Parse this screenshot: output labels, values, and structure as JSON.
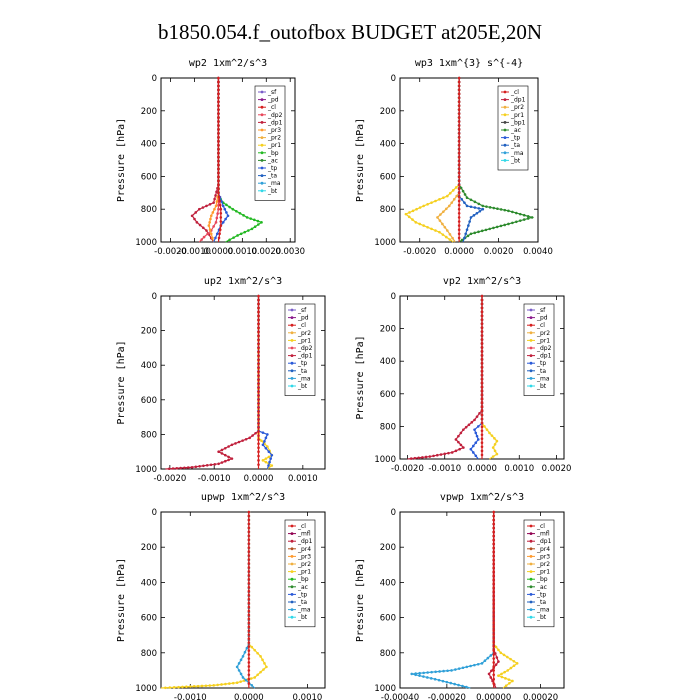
{
  "figure_title": "b1850.054.f_outofbox  BUDGET at205E,20N",
  "ylabel": "Pressure [hPa]",
  "y_ticks": [
    "0",
    "200",
    "400",
    "600",
    "800",
    "1000"
  ],
  "colors": {
    "_sf": "#7a5cc8",
    "_pd": "#8b1a8b",
    "_cl": "#d62020",
    "_dp2": "#e8475a",
    "_dp1": "#c0203c",
    "_pr3": "#ff9a2e",
    "_pr2": "#f0b040",
    "_pr1": "#f5d020",
    "_bp": "#22b822",
    "_ac": "#2e8b2e",
    "_tp": "#2a5ad8",
    "_ta": "#2060c0",
    "_ma": "#30a0d8",
    "_bt": "#30d8e8",
    "_mfl": "#900050",
    "_pr4": "#b05020"
  },
  "chart_data": [
    {
      "type": "line",
      "title": "wp2  1xm^2/s^3",
      "x_ticks": [
        "-0.0020",
        "-0.0010",
        "0.0000",
        "0.0010",
        "0.0020",
        "0.0030"
      ],
      "xlim": [
        -0.0024,
        0.0032
      ],
      "ylim": [
        1000,
        0
      ],
      "legend": [
        "_sf",
        "_pd",
        "_cl",
        "_dp2",
        "_dp1",
        "_pr3",
        "_pr2",
        "_pr1",
        "_bp",
        "_ac",
        "_tp",
        "_ta",
        "_ma",
        "_bt"
      ],
      "legend_position": "top-right",
      "series": [
        {
          "name": "_bp",
          "x": [
            0,
            0,
            0,
            0.0002,
            0.0006,
            0.0012,
            0.0018,
            0.0014,
            0.0008,
            0.0003
          ],
          "y": [
            0,
            600,
            720,
            760,
            800,
            850,
            880,
            920,
            960,
            1000
          ]
        },
        {
          "name": "_dp1",
          "x": [
            0,
            0,
            -0.0002,
            -0.0008,
            -0.0011,
            -0.0009,
            -0.0005,
            -0.0002
          ],
          "y": [
            0,
            650,
            760,
            800,
            840,
            880,
            930,
            1000
          ]
        },
        {
          "name": "_dp2",
          "x": [
            0,
            0,
            -0.0001,
            -0.0003,
            -0.0006,
            -0.0008
          ],
          "y": [
            0,
            800,
            880,
            930,
            970,
            1000
          ]
        },
        {
          "name": "_pr3",
          "x": [
            0,
            0,
            -0.0001,
            -0.0003,
            -0.0004,
            -0.0002
          ],
          "y": [
            0,
            700,
            780,
            840,
            900,
            1000
          ]
        },
        {
          "name": "_tp",
          "x": [
            0,
            0,
            0.0002,
            0.0004,
            0.0001,
            -0.0002
          ],
          "y": [
            0,
            700,
            780,
            840,
            900,
            1000
          ]
        },
        {
          "name": "_cl",
          "x": [
            0,
            0,
            0.0001,
            0.0001,
            0
          ],
          "y": [
            0,
            700,
            800,
            900,
            1000
          ]
        }
      ]
    },
    {
      "type": "line",
      "title": "wp3  1xm^{3} s^{-4}",
      "x_ticks": [
        "-0.0020",
        "0.0000",
        "0.0020",
        "0.0040"
      ],
      "xlim": [
        -0.003,
        0.004
      ],
      "ylim": [
        1000,
        0
      ],
      "legend": [
        "_cl",
        "_dp1",
        "_pr2",
        "_pr1",
        "_bp1",
        "_ac",
        "_tp",
        "_ta",
        "_ma",
        "_bt"
      ],
      "legend_position": "top-right",
      "series": [
        {
          "name": "_pr1",
          "x": [
            0,
            0,
            -0.0006,
            -0.0018,
            -0.0027,
            -0.0022,
            -0.001,
            -0.0003
          ],
          "y": [
            0,
            650,
            720,
            780,
            830,
            880,
            940,
            1000
          ]
        },
        {
          "name": "_ac",
          "x": [
            0,
            0,
            0.0004,
            0.0012,
            0.0025,
            0.0037,
            0.0025,
            0.0006,
            0
          ],
          "y": [
            0,
            650,
            730,
            780,
            810,
            850,
            890,
            950,
            1000
          ]
        },
        {
          "name": "_pr2",
          "x": [
            0,
            0,
            -0.0005,
            -0.0011,
            -0.0006,
            -0.0002
          ],
          "y": [
            0,
            700,
            780,
            850,
            930,
            1000
          ]
        },
        {
          "name": "_ta",
          "x": [
            0,
            0,
            0.0004,
            0.0012,
            0.0006,
            0.0002
          ],
          "y": [
            0,
            720,
            780,
            800,
            850,
            1000
          ]
        },
        {
          "name": "_cl",
          "x": [
            0,
            0,
            0,
            0
          ],
          "y": [
            0,
            700,
            900,
            1000
          ]
        }
      ]
    },
    {
      "type": "line",
      "title": "up2  1xm^2/s^3",
      "x_ticks": [
        "-0.0020",
        "-0.0010",
        "0.0000",
        "0.0010"
      ],
      "xlim": [
        -0.0022,
        0.0015
      ],
      "ylim": [
        1000,
        0
      ],
      "legend": [
        "_sf",
        "_pd",
        "_cl",
        "_pr2",
        "_pr1",
        "_dp2",
        "_dp1",
        "_tp",
        "_ta",
        "_ma",
        "_bt"
      ],
      "legend_position": "top-right",
      "series": [
        {
          "name": "_dp1",
          "x": [
            0,
            0,
            -0.0002,
            -0.0006,
            -0.0009,
            -0.0006,
            -0.0009,
            -0.0015,
            -0.0021
          ],
          "y": [
            0,
            780,
            820,
            860,
            900,
            940,
            970,
            990,
            1000
          ]
        },
        {
          "name": "_pr1",
          "x": [
            0,
            0,
            0.0002,
            0.0003,
            0.0001,
            0.0003,
            0.0002
          ],
          "y": [
            0,
            820,
            870,
            920,
            950,
            980,
            1000
          ]
        },
        {
          "name": "_tp",
          "x": [
            0,
            0,
            0.0002,
            0.0001,
            0.0003,
            0.0002
          ],
          "y": [
            0,
            780,
            800,
            860,
            920,
            1000
          ]
        },
        {
          "name": "_cl",
          "x": [
            0,
            0,
            0
          ],
          "y": [
            0,
            900,
            1000
          ]
        }
      ]
    },
    {
      "type": "line",
      "title": "vp2  1xm^2/s^3",
      "x_ticks": [
        "-0.0020",
        "-0.0010",
        "0.0000",
        "0.0010",
        "0.0020"
      ],
      "xlim": [
        -0.0022,
        0.0022
      ],
      "ylim": [
        1000,
        0
      ],
      "legend": [
        "_sf",
        "_pd",
        "_cl",
        "_pr2",
        "_pr1",
        "_dp2",
        "_dp1",
        "_tp",
        "_ta",
        "_ma",
        "_bt"
      ],
      "legend_position": "top-right",
      "series": [
        {
          "name": "_dp1",
          "x": [
            0,
            0,
            -0.0002,
            -0.0005,
            -0.0007,
            -0.0005,
            -0.0008,
            -0.0014,
            -0.002
          ],
          "y": [
            0,
            700,
            760,
            820,
            880,
            930,
            960,
            985,
            1000
          ]
        },
        {
          "name": "_pr1",
          "x": [
            0,
            0,
            0.0002,
            0.0004,
            0.0003,
            0.0004,
            0.0002
          ],
          "y": [
            0,
            780,
            840,
            890,
            930,
            970,
            1000
          ]
        },
        {
          "name": "_tp",
          "x": [
            0,
            0,
            -0.0002,
            -0.0001,
            -0.0003,
            -0.0001
          ],
          "y": [
            0,
            780,
            820,
            880,
            940,
            1000
          ]
        },
        {
          "name": "_cl",
          "x": [
            0,
            0,
            0
          ],
          "y": [
            0,
            900,
            1000
          ]
        }
      ]
    },
    {
      "type": "line",
      "title": "upwp  1xm^2/s^3",
      "x_ticks": [
        "-0.0010",
        "0.0000",
        "0.0010"
      ],
      "xlim": [
        -0.0015,
        0.0013
      ],
      "ylim": [
        1000,
        0
      ],
      "legend": [
        "_cl",
        "_mfl",
        "_dp1",
        "_pr4",
        "_pr3",
        "_pr2",
        "_pr1",
        "_bp",
        "_ac",
        "_tp",
        "_ta",
        "_ma",
        "_bt"
      ],
      "legend_position": "top-right",
      "series": [
        {
          "name": "_pr1",
          "x": [
            0,
            0,
            0.0002,
            0.0003,
            0.0001,
            -0.0002,
            -0.0006,
            -0.0012,
            -0.0015
          ],
          "y": [
            0,
            750,
            820,
            880,
            940,
            970,
            985,
            995,
            1000
          ]
        },
        {
          "name": "_ma",
          "x": [
            0,
            0,
            -0.0001,
            -0.0002,
            -0.0001,
            0.0001
          ],
          "y": [
            0,
            750,
            820,
            880,
            940,
            1000
          ]
        },
        {
          "name": "_cl",
          "x": [
            0,
            0,
            0
          ],
          "y": [
            0,
            900,
            1000
          ]
        }
      ]
    },
    {
      "type": "line",
      "title": "vpwp  1xm^2/s^3",
      "x_ticks": [
        "-0.00040",
        "-0.00020",
        "0.00000",
        "0.00020"
      ],
      "xlim": [
        -0.0004,
        0.0003
      ],
      "ylim": [
        1000,
        0
      ],
      "legend": [
        "_cl",
        "_mfl",
        "_dp1",
        "_pr4",
        "_pr3",
        "_pr2",
        "_pr1",
        "_bp",
        "_ac",
        "_tp",
        "_ta",
        "_ma",
        "_bt"
      ],
      "legend_position": "top-right",
      "series": [
        {
          "name": "_pr1",
          "x": [
            0,
            0,
            3e-05,
            0.0001,
            6e-05,
            2e-05,
            8e-05,
            4e-05
          ],
          "y": [
            0,
            750,
            800,
            860,
            900,
            930,
            960,
            1000
          ]
        },
        {
          "name": "_ma",
          "x": [
            0,
            0,
            -5e-05,
            -0.00018,
            -0.00035,
            -0.00025,
            -0.0001
          ],
          "y": [
            0,
            800,
            860,
            900,
            920,
            950,
            1000
          ]
        },
        {
          "name": "_dp1",
          "x": [
            0,
            0,
            2e-05,
            -2e-05,
            1e-05
          ],
          "y": [
            0,
            780,
            850,
            920,
            1000
          ]
        },
        {
          "name": "_cl",
          "x": [
            0,
            0,
            0
          ],
          "y": [
            0,
            900,
            1000
          ]
        }
      ]
    }
  ]
}
